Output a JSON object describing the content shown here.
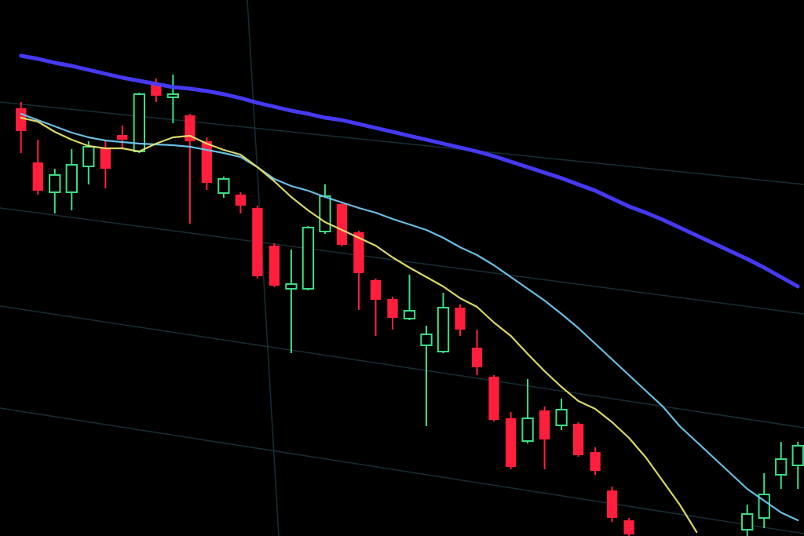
{
  "chart_data": {
    "type": "candlestick",
    "categories": [
      null,
      null,
      null,
      null,
      null,
      null,
      null,
      null,
      null,
      null,
      null,
      null,
      null,
      null,
      null,
      null,
      null,
      null,
      null,
      null,
      null,
      null,
      null,
      null,
      null,
      null,
      null,
      null,
      null,
      null,
      null,
      null,
      null,
      null,
      null,
      null,
      null,
      null,
      null,
      null,
      null,
      null,
      null,
      null,
      null,
      null,
      null
    ],
    "ylim": [
      0,
      683
    ],
    "up_color": "#3ddc84",
    "down_color": "#ff1f3d",
    "open": [
      545,
      476,
      438,
      438,
      471,
      495,
      511,
      490,
      577,
      559,
      536,
      503,
      437,
      435,
      418,
      370,
      315,
      315,
      388,
      423,
      387,
      326,
      302,
      277,
      243,
      235,
      291,
      240,
      203,
      150,
      121,
      160,
      141,
      143,
      107,
      58,
      20,
      null,
      null,
      null,
      null,
      null,
      null,
      8,
      23,
      78,
      90
    ],
    "high": [
      553,
      505,
      468,
      493,
      503,
      503,
      523,
      565,
      583,
      588,
      538,
      508,
      458,
      438,
      421,
      373,
      365,
      395,
      448,
      425,
      389,
      328,
      305,
      333,
      268,
      310,
      295,
      263,
      205,
      158,
      200,
      165,
      175,
      145,
      113,
      63,
      23,
      null,
      null,
      null,
      null,
      null,
      null,
      40,
      80,
      120,
      120
    ],
    "low": [
      488,
      435,
      411,
      415,
      448,
      443,
      493,
      488,
      553,
      526,
      398,
      441,
      431,
      411,
      328,
      317,
      233,
      313,
      385,
      369,
      288,
      255,
      263,
      275,
      140,
      233,
      255,
      205,
      146,
      85,
      118,
      85,
      135,
      101,
      78,
      18,
      0,
      null,
      null,
      null,
      null,
      null,
      null,
      0,
      10,
      60,
      60
    ],
    "close": [
      516,
      440,
      460,
      473,
      496,
      468,
      505,
      563,
      561,
      563,
      503,
      450,
      455,
      421,
      331,
      319,
      321,
      393,
      433,
      371,
      335,
      301,
      278,
      287,
      257,
      291,
      263,
      215,
      148,
      88,
      150,
      123,
      161,
      103,
      83,
      23,
      2,
      null,
      null,
      null,
      null,
      null,
      null,
      28,
      53,
      98,
      115
    ],
    "lines": [
      {
        "color": "#4a3cff",
        "values": [
          612,
          608,
          603,
          599,
          594,
          589,
          584,
          580,
          576,
          572,
          570,
          567,
          563,
          558,
          552,
          547,
          542,
          538,
          533,
          530,
          525,
          520,
          515,
          510,
          505,
          500,
          495,
          490,
          484,
          477,
          470,
          463,
          456,
          448,
          440,
          430,
          420,
          412,
          403,
          393,
          383,
          373,
          363,
          353,
          342,
          330,
          318
        ]
      },
      {
        "color": "#6ec8f0",
        "values": [
          538,
          530,
          522,
          514,
          508,
          504,
          502,
          500,
          499,
          498,
          496,
          492,
          488,
          483,
          470,
          455,
          446,
          440,
          432,
          425,
          418,
          412,
          404,
          397,
          390,
          380,
          368,
          358,
          345,
          330,
          315,
          300,
          283,
          265,
          245,
          225,
          205,
          185,
          165,
          140,
          120,
          100,
          80,
          60,
          45,
          30,
          20
        ]
      },
      {
        "color": "#e6e36a",
        "values": [
          533,
          528,
          515,
          505,
          497,
          494,
          494,
          490,
          500,
          508,
          510,
          500,
          492,
          486,
          470,
          452,
          432,
          415,
          400,
          390,
          380,
          370,
          355,
          342,
          330,
          318,
          303,
          292,
          272,
          255,
          232,
          210,
          190,
          172,
          162,
          145,
          125,
          100,
          70,
          40,
          5,
          null,
          null,
          null,
          null,
          null,
          null
        ]
      }
    ]
  }
}
